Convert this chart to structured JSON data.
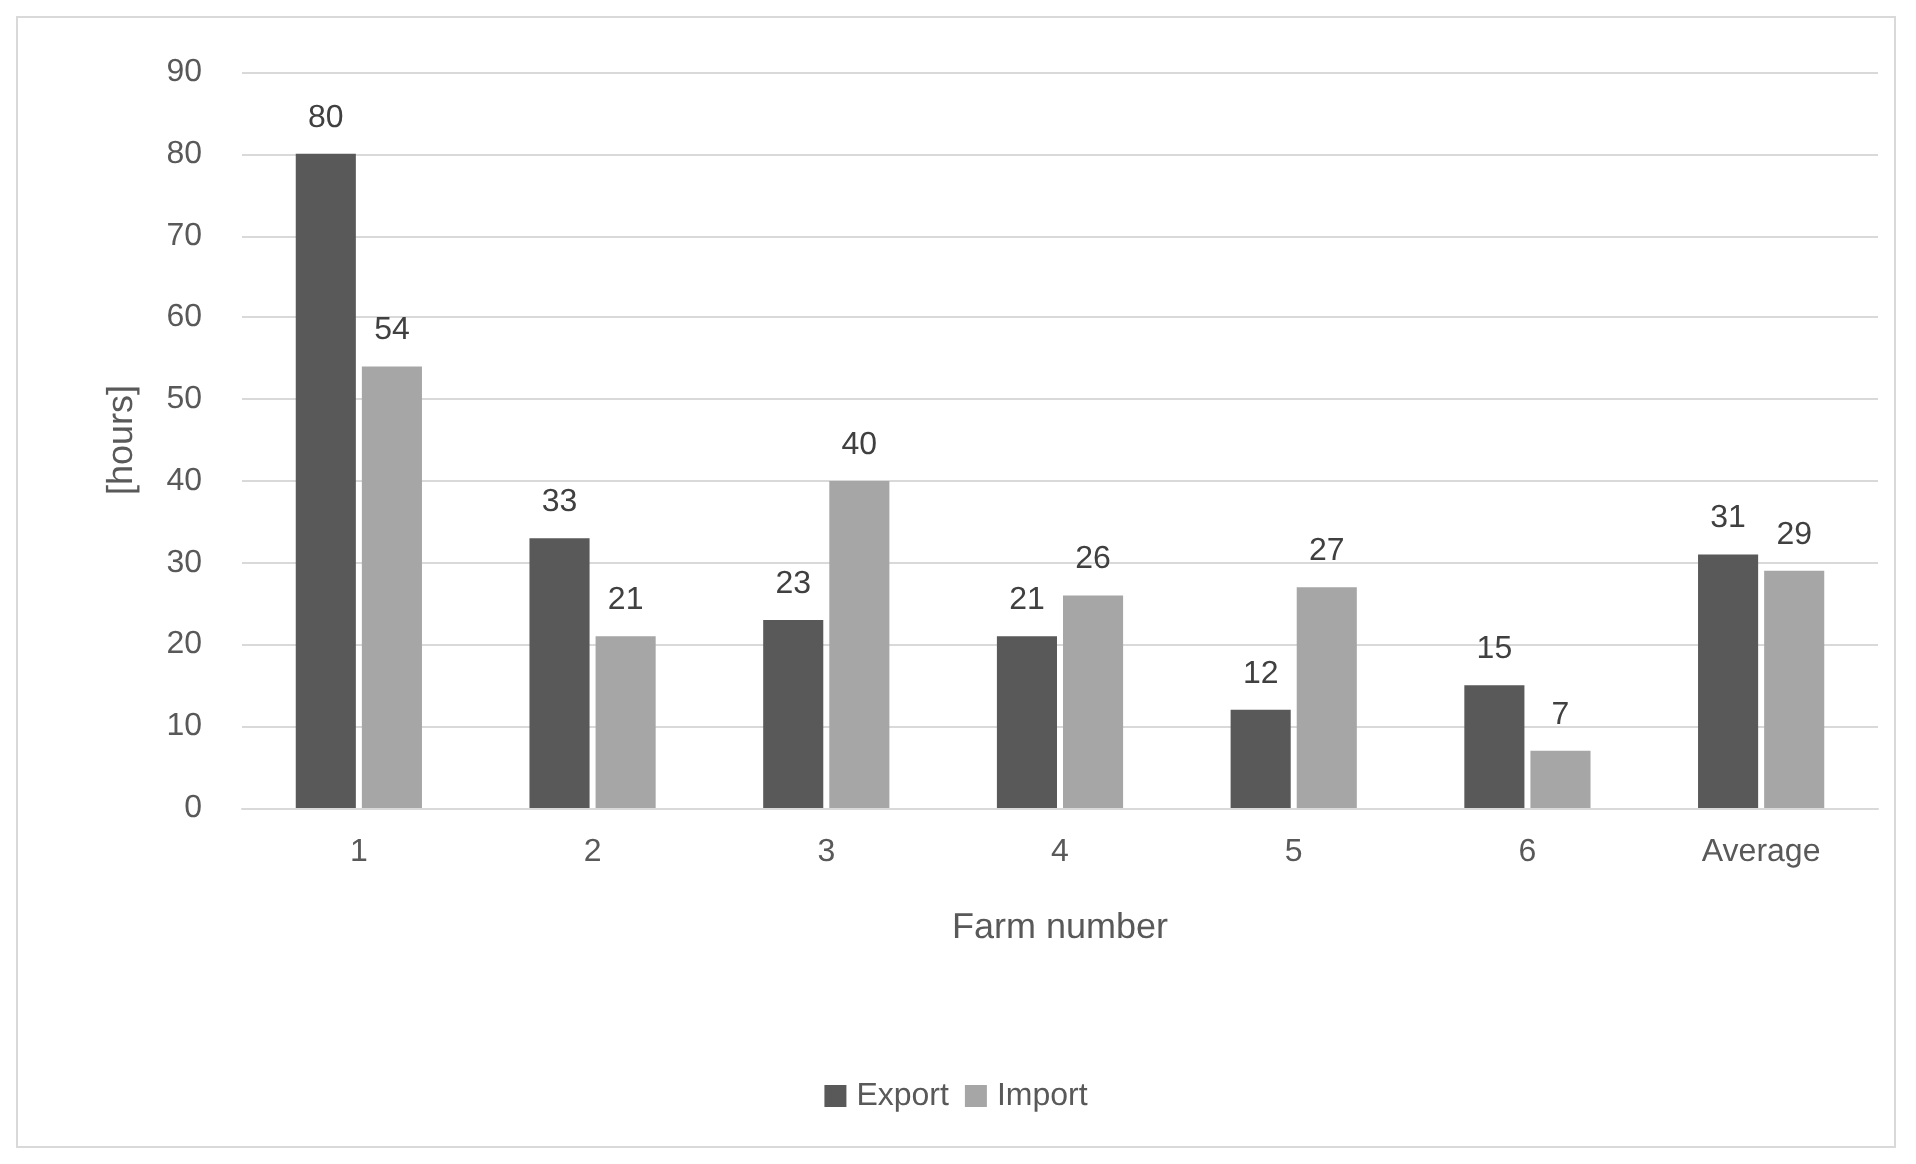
{
  "chart_data": {
    "type": "bar",
    "xlabel": "Farm number",
    "ylabel": "[hours]",
    "categories": [
      "1",
      "2",
      "3",
      "4",
      "5",
      "6",
      "Average"
    ],
    "series": [
      {
        "name": "Export",
        "color": "#595959",
        "values": [
          80,
          33,
          23,
          21,
          12,
          15,
          31
        ]
      },
      {
        "name": "Import",
        "color": "#a6a6a6",
        "values": [
          54,
          21,
          40,
          26,
          27,
          7,
          29
        ]
      }
    ],
    "ylim": [
      0,
      90
    ],
    "yticks": [
      0,
      10,
      20,
      30,
      40,
      50,
      60,
      70,
      80,
      90
    ],
    "grid": "y",
    "legend": "bottom",
    "data_labels": true
  }
}
